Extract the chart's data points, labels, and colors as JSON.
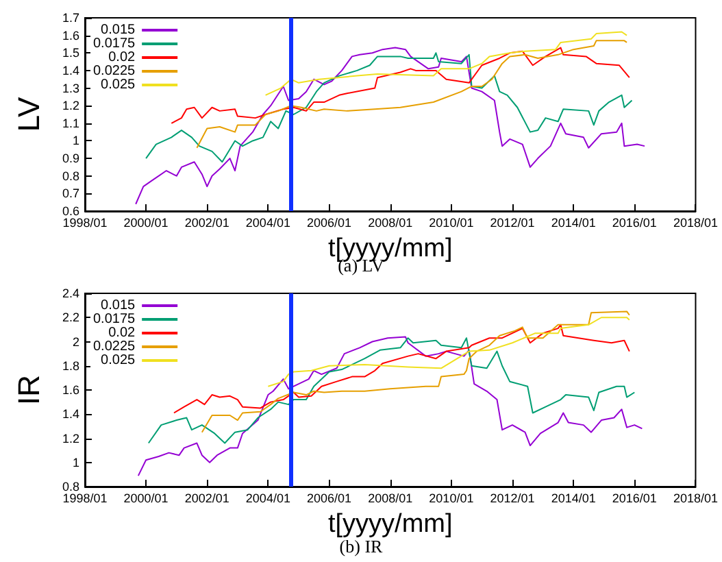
{
  "chart_data": [
    {
      "type": "line",
      "title": "(a) LV",
      "xlabel": "t[yyyy/mm]",
      "ylabel": "LV",
      "xlim": [
        "1998-01",
        "2018-01"
      ],
      "xticks": [
        {
          "value": "1998-01",
          "label": "1998/01"
        },
        {
          "value": "2000-01",
          "label": "2000/01"
        },
        {
          "value": "2002-01",
          "label": "2002/01"
        },
        {
          "value": "2004-01",
          "label": "2004/01"
        },
        {
          "value": "2006-01",
          "label": "2006/01"
        },
        {
          "value": "2008-01",
          "label": "2008/01"
        },
        {
          "value": "2010-01",
          "label": "2010/01"
        },
        {
          "value": "2012-01",
          "label": "2012/01"
        },
        {
          "value": "2014-01",
          "label": "2014/01"
        },
        {
          "value": "2016-01",
          "label": "2016/01"
        },
        {
          "value": "2018-01",
          "label": "2018/01"
        }
      ],
      "ylim": [
        0.6,
        1.7
      ],
      "yticks": [
        0.6,
        0.7,
        0.8,
        0.9,
        1,
        1.1,
        1.2,
        1.3,
        1.4,
        1.5,
        1.6,
        1.7
      ],
      "legend": "top left",
      "marker": "none",
      "line_style": "solid",
      "ref_lines": [
        {
          "axis": "x",
          "value": "2004-10",
          "color": "#1030ff"
        }
      ],
      "series": [
        {
          "name": "0.015",
          "color": "#9400d3",
          "x": [
            "1999-09",
            "1999-12",
            "2000-03",
            "2000-09",
            "2001-01",
            "2001-03",
            "2001-08",
            "2001-11",
            "2002-01",
            "2002-03",
            "2002-06",
            "2002-10",
            "2002-12",
            "2003-02",
            "2003-07",
            "2003-11",
            "2004-02",
            "2004-07",
            "2004-09",
            "2005-01",
            "2005-04",
            "2005-07",
            "2005-11",
            "2006-02",
            "2006-06",
            "2006-10",
            "2007-01",
            "2007-06",
            "2007-10",
            "2008-03",
            "2008-07",
            "2008-09",
            "2009-04",
            "2009-08",
            "2009-09",
            "2010-05",
            "2010-07",
            "2010-09",
            "2011-01",
            "2011-06",
            "2011-08",
            "2011-09",
            "2011-12",
            "2012-05",
            "2012-08",
            "2012-11",
            "2013-04",
            "2013-08",
            "2013-10",
            "2014-05",
            "2014-07",
            "2014-12",
            "2015-06",
            "2015-08",
            "2015-09",
            "2016-02",
            "2016-05"
          ],
          "values": [
            0.64,
            0.74,
            0.77,
            0.83,
            0.8,
            0.85,
            0.88,
            0.81,
            0.74,
            0.8,
            0.84,
            0.9,
            0.83,
            0.97,
            1.05,
            1.15,
            1.2,
            1.31,
            1.23,
            1.24,
            1.28,
            1.35,
            1.32,
            1.34,
            1.4,
            1.48,
            1.49,
            1.5,
            1.52,
            1.53,
            1.52,
            1.48,
            1.41,
            1.42,
            1.47,
            1.45,
            1.48,
            1.3,
            1.28,
            1.23,
            1.05,
            0.97,
            1.01,
            0.98,
            0.85,
            0.9,
            0.97,
            1.1,
            1.04,
            1.02,
            0.96,
            1.04,
            1.05,
            1.1,
            0.97,
            0.98,
            0.97
          ]
        },
        {
          "name": "0.0175",
          "color": "#009e73",
          "x": [
            "2000-01",
            "2000-05",
            "2000-11",
            "2001-03",
            "2001-07",
            "2001-10",
            "2002-03",
            "2002-07",
            "2002-12",
            "2003-03",
            "2003-07",
            "2003-11",
            "2004-02",
            "2004-05",
            "2004-08",
            "2004-11",
            "2005-04",
            "2005-08",
            "2005-11",
            "2006-05",
            "2006-12",
            "2007-05",
            "2007-08",
            "2008-05",
            "2008-08",
            "2009-06",
            "2009-07",
            "2009-08",
            "2010-05",
            "2010-08",
            "2010-09",
            "2011-01",
            "2011-06",
            "2011-08",
            "2011-11",
            "2012-03",
            "2012-08",
            "2012-11",
            "2013-02",
            "2013-07",
            "2013-09",
            "2014-07",
            "2014-09",
            "2014-11",
            "2015-03",
            "2015-08",
            "2015-09",
            "2015-12"
          ],
          "values": [
            0.9,
            0.98,
            1.02,
            1.06,
            1.02,
            0.97,
            0.94,
            0.88,
            1.0,
            0.97,
            1.0,
            1.02,
            1.11,
            1.07,
            1.17,
            1.15,
            1.19,
            1.28,
            1.33,
            1.37,
            1.4,
            1.43,
            1.48,
            1.48,
            1.47,
            1.47,
            1.5,
            1.45,
            1.44,
            1.49,
            1.31,
            1.3,
            1.37,
            1.28,
            1.26,
            1.19,
            1.05,
            1.06,
            1.13,
            1.11,
            1.18,
            1.17,
            1.09,
            1.17,
            1.22,
            1.26,
            1.19,
            1.23
          ]
        },
        {
          "name": "0.02",
          "color": "#ff0000",
          "x": [
            "2000-11",
            "2001-03",
            "2001-05",
            "2001-08",
            "2001-11",
            "2002-03",
            "2002-06",
            "2002-12",
            "2003-01",
            "2003-08",
            "2003-12",
            "2004-07",
            "2004-11",
            "2005-04",
            "2005-07",
            "2005-11",
            "2006-05",
            "2006-08",
            "2007-07",
            "2007-08",
            "2008-05",
            "2008-09",
            "2008-11",
            "2009-07",
            "2009-11",
            "2010-08",
            "2011-01",
            "2011-08",
            "2011-12",
            "2012-05",
            "2012-09",
            "2013-02",
            "2013-08",
            "2013-09",
            "2014-06",
            "2014-10",
            "2015-07",
            "2015-11"
          ],
          "values": [
            1.1,
            1.13,
            1.18,
            1.19,
            1.13,
            1.19,
            1.17,
            1.18,
            1.14,
            1.13,
            1.15,
            1.18,
            1.19,
            1.17,
            1.22,
            1.22,
            1.26,
            1.27,
            1.3,
            1.36,
            1.39,
            1.41,
            1.4,
            1.4,
            1.35,
            1.33,
            1.43,
            1.47,
            1.5,
            1.51,
            1.43,
            1.48,
            1.53,
            1.49,
            1.48,
            1.44,
            1.43,
            1.36
          ]
        },
        {
          "name": "0.0225",
          "color": "#e69f00",
          "x": [
            "2001-09",
            "2002-01",
            "2002-06",
            "2002-12",
            "2003-01",
            "2003-08",
            "2003-12",
            "2004-05",
            "2004-10",
            "2005-02",
            "2005-08",
            "2005-11",
            "2006-08",
            "2007-07",
            "2008-05",
            "2009-06",
            "2010-05",
            "2010-09",
            "2011-01",
            "2011-05",
            "2011-09",
            "2011-12",
            "2012-06",
            "2012-11",
            "2013-07",
            "2014-01",
            "2014-09",
            "2014-10",
            "2015-09",
            "2015-10"
          ],
          "values": [
            0.96,
            1.07,
            1.08,
            1.05,
            1.09,
            1.09,
            1.15,
            1.17,
            1.2,
            1.19,
            1.17,
            1.18,
            1.17,
            1.18,
            1.19,
            1.22,
            1.28,
            1.31,
            1.31,
            1.35,
            1.44,
            1.48,
            1.49,
            1.47,
            1.49,
            1.52,
            1.54,
            1.57,
            1.57,
            1.56
          ]
        },
        {
          "name": "0.025",
          "color": "#f0e020",
          "x": [
            "2003-12",
            "2004-06",
            "2004-10",
            "2005-01",
            "2005-09",
            "2006-12",
            "2007-08",
            "2009-06",
            "2009-09",
            "2010-08",
            "2011-01",
            "2011-04",
            "2011-12",
            "2012-06",
            "2013-06",
            "2013-08",
            "2014-08",
            "2014-10",
            "2015-08",
            "2015-10"
          ],
          "values": [
            1.26,
            1.3,
            1.35,
            1.33,
            1.35,
            1.37,
            1.38,
            1.37,
            1.41,
            1.41,
            1.44,
            1.48,
            1.5,
            1.51,
            1.52,
            1.56,
            1.58,
            1.61,
            1.62,
            1.6
          ]
        }
      ]
    },
    {
      "type": "line",
      "title": "(b) IR",
      "xlabel": "t[yyyy/mm]",
      "ylabel": "IR",
      "xlim": [
        "1998-01",
        "2018-01"
      ],
      "xticks": [
        {
          "value": "1998-01",
          "label": "1998/01"
        },
        {
          "value": "2000-01",
          "label": "2000/01"
        },
        {
          "value": "2002-01",
          "label": "2002/01"
        },
        {
          "value": "2004-01",
          "label": "2004/01"
        },
        {
          "value": "2006-01",
          "label": "2006/01"
        },
        {
          "value": "2008-01",
          "label": "2008/01"
        },
        {
          "value": "2010-01",
          "label": "2010/01"
        },
        {
          "value": "2012-01",
          "label": "2012/01"
        },
        {
          "value": "2014-01",
          "label": "2014/01"
        },
        {
          "value": "2016-01",
          "label": "2016/01"
        },
        {
          "value": "2018-01",
          "label": "2018/01"
        }
      ],
      "ylim": [
        0.8,
        2.4
      ],
      "yticks": [
        0.8,
        1,
        1.2,
        1.4,
        1.6,
        1.8,
        2,
        2.2,
        2.4
      ],
      "legend": "top left",
      "marker": "none",
      "line_style": "solid",
      "ref_lines": [
        {
          "axis": "x",
          "value": "2004-10",
          "color": "#1030ff"
        }
      ],
      "series": [
        {
          "name": "0.015",
          "color": "#9400d3",
          "x": [
            "1999-10",
            "2000-01",
            "2000-06",
            "2000-10",
            "2001-02",
            "2001-04",
            "2001-09",
            "2001-11",
            "2002-02",
            "2002-05",
            "2002-10",
            "2003-01",
            "2003-03",
            "2003-09",
            "2004-01",
            "2004-03",
            "2004-07",
            "2004-09",
            "2005-01",
            "2005-05",
            "2005-07",
            "2005-10",
            "2006-04",
            "2006-07",
            "2007-01",
            "2007-06",
            "2007-12",
            "2008-07",
            "2008-08",
            "2009-03",
            "2009-08",
            "2009-11",
            "2010-06",
            "2010-08",
            "2010-10",
            "2011-03",
            "2011-07",
            "2011-09",
            "2012-01",
            "2012-06",
            "2012-08",
            "2012-12",
            "2013-07",
            "2013-09",
            "2013-11",
            "2014-05",
            "2014-08",
            "2014-12",
            "2015-05",
            "2015-08",
            "2015-10",
            "2016-01",
            "2016-04"
          ],
          "values": [
            0.89,
            1.02,
            1.05,
            1.08,
            1.06,
            1.12,
            1.16,
            1.06,
            1.0,
            1.06,
            1.12,
            1.12,
            1.24,
            1.35,
            1.56,
            1.59,
            1.69,
            1.61,
            1.65,
            1.69,
            1.76,
            1.73,
            1.78,
            1.9,
            1.95,
            2.0,
            2.03,
            2.04,
            1.99,
            1.88,
            1.9,
            1.92,
            1.88,
            1.93,
            1.65,
            1.59,
            1.52,
            1.27,
            1.31,
            1.25,
            1.14,
            1.24,
            1.33,
            1.41,
            1.33,
            1.31,
            1.25,
            1.35,
            1.37,
            1.44,
            1.29,
            1.31,
            1.28
          ]
        },
        {
          "name": "0.0175",
          "color": "#009e73",
          "x": [
            "2000-02",
            "2000-07",
            "2001-01",
            "2001-05",
            "2001-07",
            "2001-11",
            "2002-04",
            "2002-08",
            "2002-12",
            "2003-05",
            "2003-09",
            "2004-02",
            "2004-05",
            "2004-09",
            "2004-11",
            "2005-04",
            "2005-07",
            "2006-01",
            "2006-06",
            "2007-03",
            "2007-09",
            "2008-05",
            "2008-08",
            "2008-10",
            "2009-07",
            "2009-09",
            "2010-05",
            "2010-07",
            "2010-09",
            "2011-03",
            "2011-07",
            "2011-09",
            "2011-12",
            "2012-07",
            "2012-09",
            "2013-02",
            "2013-08",
            "2013-10",
            "2014-07",
            "2014-09",
            "2014-11",
            "2015-06",
            "2015-09",
            "2015-10",
            "2016-01"
          ],
          "values": [
            1.16,
            1.31,
            1.35,
            1.37,
            1.27,
            1.31,
            1.24,
            1.16,
            1.25,
            1.27,
            1.37,
            1.44,
            1.5,
            1.48,
            1.52,
            1.52,
            1.63,
            1.75,
            1.77,
            1.86,
            1.93,
            1.95,
            2.03,
            1.99,
            2.01,
            1.97,
            1.95,
            2.03,
            1.8,
            1.78,
            1.92,
            1.8,
            1.67,
            1.63,
            1.41,
            1.46,
            1.52,
            1.56,
            1.54,
            1.43,
            1.58,
            1.63,
            1.63,
            1.54,
            1.58
          ]
        },
        {
          "name": "0.02",
          "color": "#ff0000",
          "x": [
            "2000-12",
            "2001-04",
            "2001-09",
            "2001-12",
            "2002-03",
            "2002-06",
            "2002-10",
            "2003-01",
            "2003-03",
            "2003-10",
            "2004-02",
            "2004-07",
            "2004-11",
            "2005-01",
            "2005-06",
            "2005-10",
            "2006-04",
            "2006-10",
            "2007-03",
            "2007-07",
            "2007-10",
            "2008-08",
            "2008-12",
            "2009-07",
            "2009-11",
            "2010-08",
            "2010-09",
            "2011-04",
            "2011-09",
            "2012-01",
            "2012-05",
            "2012-08",
            "2013-01",
            "2013-07",
            "2013-08",
            "2013-09",
            "2014-09",
            "2015-04",
            "2015-09",
            "2015-11"
          ],
          "values": [
            1.41,
            1.46,
            1.52,
            1.48,
            1.56,
            1.54,
            1.55,
            1.52,
            1.46,
            1.45,
            1.5,
            1.52,
            1.58,
            1.54,
            1.55,
            1.63,
            1.67,
            1.71,
            1.71,
            1.76,
            1.82,
            1.88,
            1.9,
            1.86,
            1.92,
            1.95,
            1.97,
            2.03,
            2.03,
            2.07,
            2.11,
            1.99,
            2.07,
            2.11,
            2.14,
            2.05,
            2.01,
            1.99,
            2.01,
            1.92
          ]
        },
        {
          "name": "0.0225",
          "color": "#e69f00",
          "x": [
            "2001-11",
            "2002-03",
            "2002-10",
            "2003-01",
            "2003-03",
            "2003-10",
            "2004-02",
            "2004-05",
            "2004-11",
            "2005-04",
            "2005-07",
            "2005-11",
            "2006-06",
            "2007-03",
            "2008-01",
            "2009-03",
            "2009-08",
            "2009-09",
            "2010-06",
            "2010-07",
            "2010-08",
            "2010-11",
            "2011-04",
            "2011-08",
            "2012-02",
            "2012-05",
            "2012-07",
            "2013-01",
            "2013-07",
            "2014-07",
            "2014-08",
            "2015-10",
            "2015-11"
          ],
          "values": [
            1.25,
            1.39,
            1.39,
            1.35,
            1.41,
            1.42,
            1.48,
            1.53,
            1.58,
            1.56,
            1.59,
            1.58,
            1.59,
            1.59,
            1.61,
            1.63,
            1.63,
            1.71,
            1.73,
            1.76,
            1.86,
            1.92,
            1.97,
            2.05,
            2.09,
            2.12,
            2.03,
            2.03,
            2.14,
            2.14,
            2.24,
            2.25,
            2.22
          ]
        },
        {
          "name": "0.025",
          "color": "#f0e020",
          "x": [
            "2004-01",
            "2004-07",
            "2004-09",
            "2004-11",
            "2005-06",
            "2006-01",
            "2007-03",
            "2008-08",
            "2009-09",
            "2010-08",
            "2011-04",
            "2012-01",
            "2012-10",
            "2013-07",
            "2013-08",
            "2014-07",
            "2014-12",
            "2015-10",
            "2015-11"
          ],
          "values": [
            1.63,
            1.67,
            1.73,
            1.75,
            1.76,
            1.8,
            1.81,
            1.79,
            1.78,
            1.92,
            1.93,
            1.99,
            2.07,
            2.07,
            2.11,
            2.14,
            2.2,
            2.2,
            2.18
          ]
        }
      ]
    }
  ]
}
